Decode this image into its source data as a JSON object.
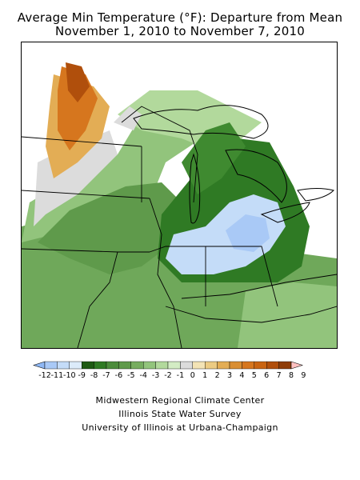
{
  "title": {
    "line1": "Average Min Temperature (°F): Departure from Mean",
    "line2": "November 1, 2010 to November 7, 2010"
  },
  "legend": {
    "labels": [
      "-12",
      "-11",
      "-10",
      "-9",
      "-8",
      "-7",
      "-6",
      "-5",
      "-4",
      "-3",
      "-2",
      "-1",
      "0",
      "1",
      "2",
      "3",
      "4",
      "5",
      "6",
      "7",
      "8",
      "9"
    ],
    "colors": [
      "#8fb8f5",
      "#a9c9f6",
      "#c4dcf8",
      "#dcebfa",
      "#1e5a14",
      "#2f7a24",
      "#4c8c3c",
      "#5f9a4b",
      "#77ad60",
      "#92c47c",
      "#b2d99c",
      "#d3ecc4",
      "#dcdcdc",
      "#f3e3b5",
      "#eccb83",
      "#e3ad55",
      "#d98e33",
      "#d6761e",
      "#c96412",
      "#b04f0c",
      "#8f3d08",
      "#ffc0c0"
    ]
  },
  "credits": {
    "line1": "Midwestern Regional Climate Center",
    "line2": "Illinois State Water Survey",
    "line3": "University of Illinois at Urbana-Champaign"
  }
}
